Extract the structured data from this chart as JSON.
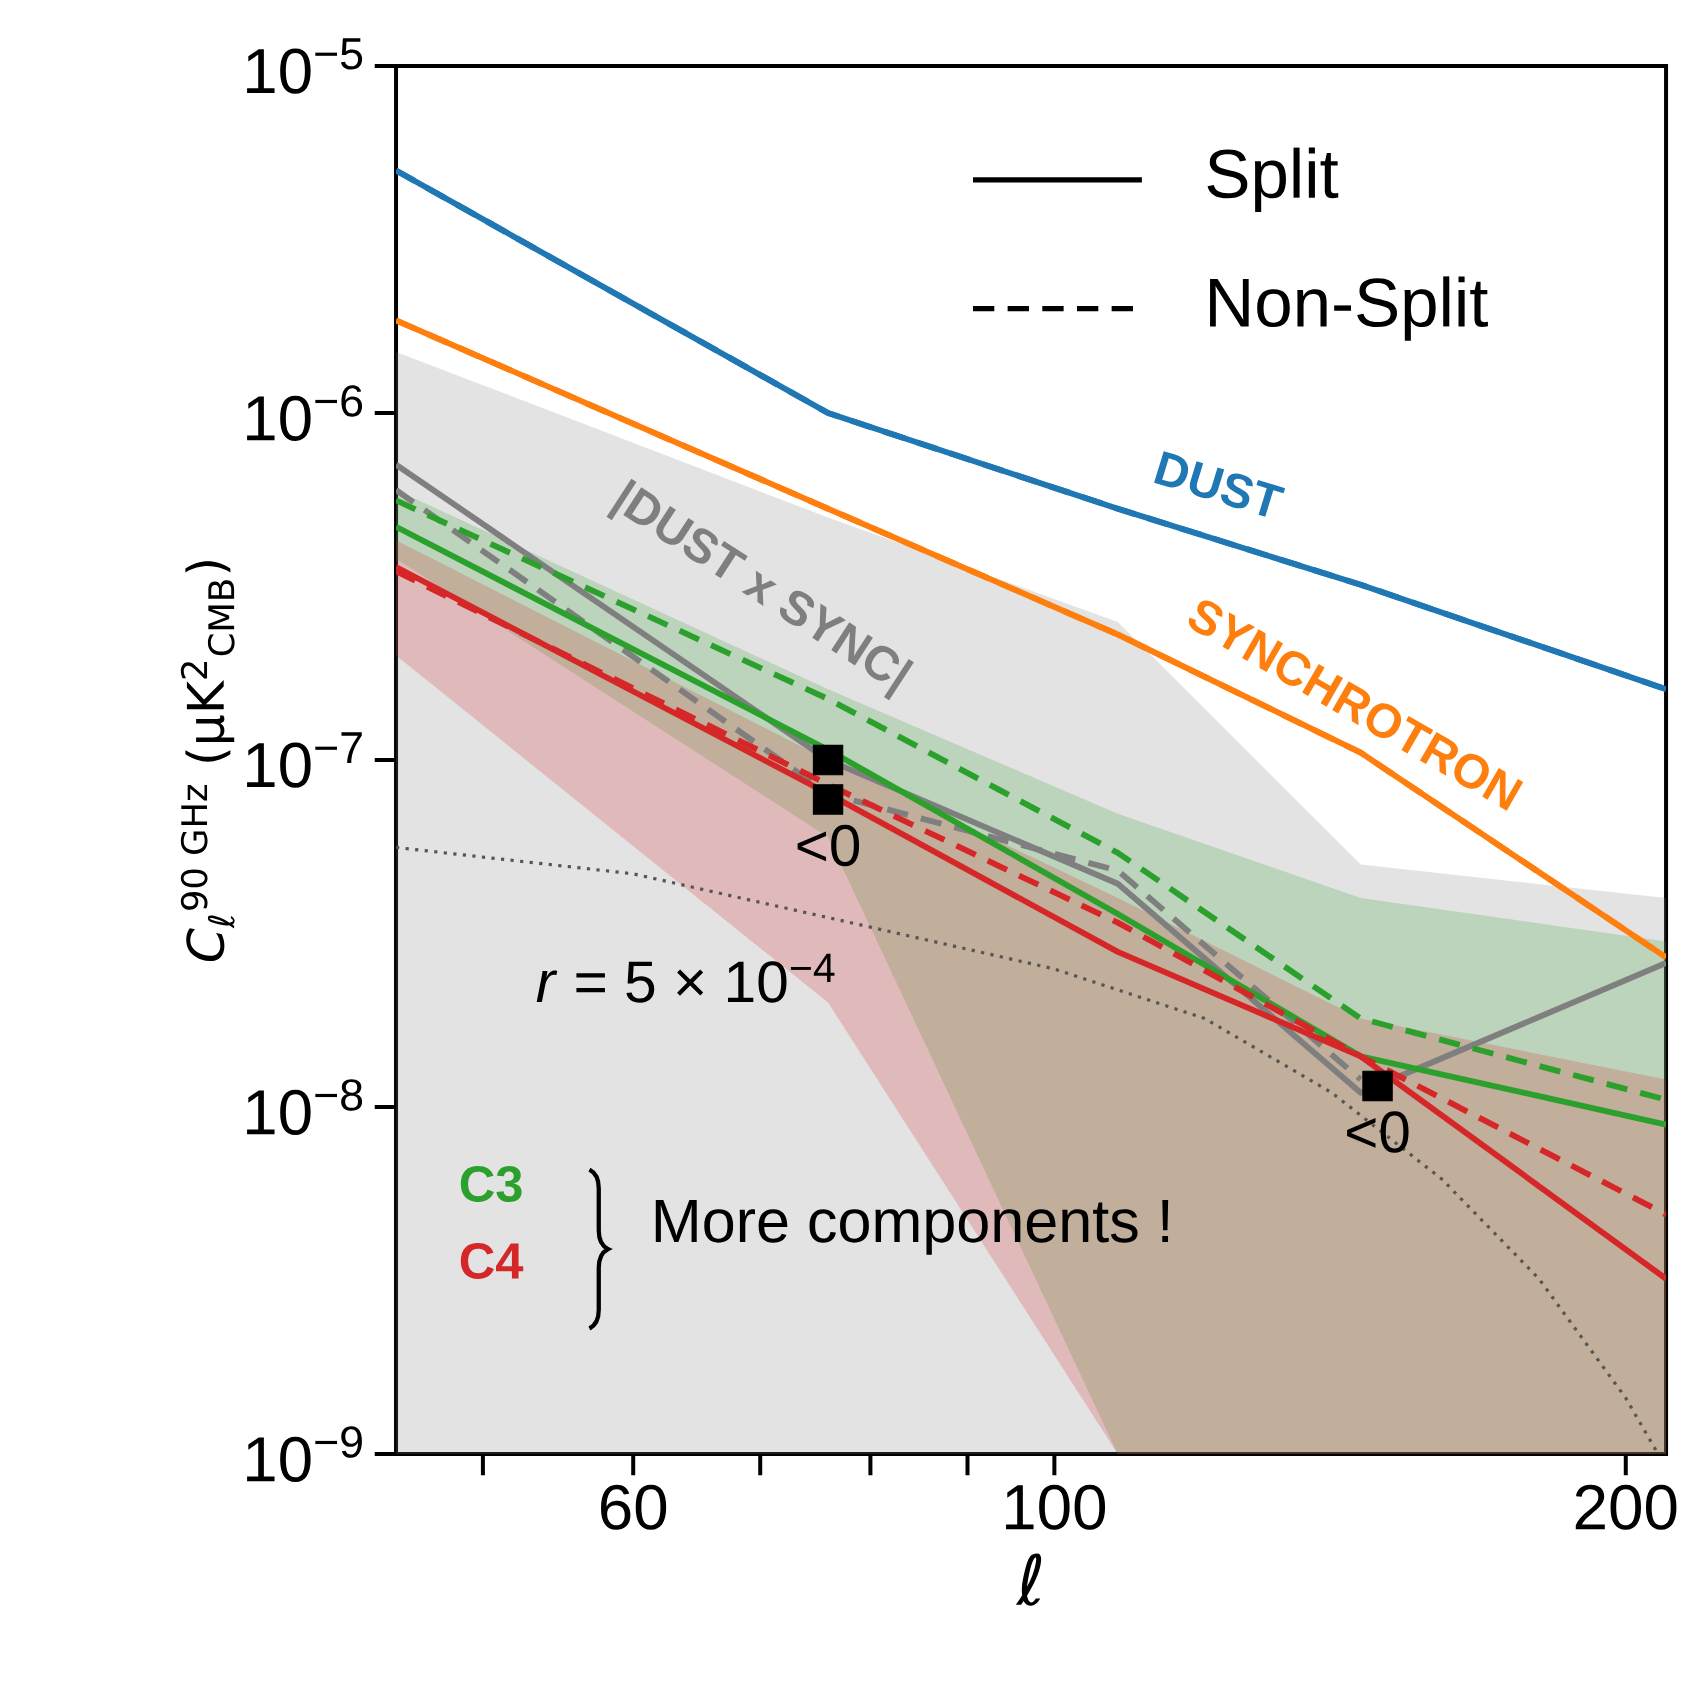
{
  "chart_data": {
    "type": "line",
    "xlabel": "ℓ",
    "ylabel": "*C*$_{ℓ}$$^{90 GHz}$ (μK$^{2}$$_{CMB}$)",
    "log": "xy",
    "xlim": [
      45,
      210
    ],
    "ylim": [
      1e-09,
      1e-05
    ],
    "xticks": [
      {
        "value": 50,
        "label": null
      },
      60,
      {
        "value": 70,
        "label": null
      },
      {
        "value": 80,
        "label": null
      },
      {
        "value": 90,
        "label": null
      },
      100,
      200
    ],
    "yticks": [
      {
        "value": 1e-09,
        "label": "10$^{−9}$"
      },
      {
        "value": 1e-08,
        "label": "10$^{−8}$"
      },
      {
        "value": 1e-07,
        "label": "10$^{−7}$"
      },
      {
        "value": 1e-06,
        "label": "10$^{−6}$"
      },
      {
        "value": 1e-05,
        "label": "10$^{−5}$"
      }
    ],
    "x": [
      45,
      76,
      108,
      145,
      210
    ],
    "series": [
      {
        "name": "DUST",
        "color": "#1f77b4",
        "line_style": "solid",
        "values": [
          5e-06,
          1e-06,
          5.3e-07,
          3.2e-07,
          1.6e-07
        ]
      },
      {
        "color": "#1f77b4",
        "line_style": "dashed",
        "values": [
          5e-06,
          1e-06,
          5.3e-07,
          3.2e-07,
          1.6e-07
        ]
      },
      {
        "name": "SYNCHROTRON",
        "color": "#ff7f0e",
        "line_style": "solid",
        "values": [
          1.85e-06,
          5.3e-07,
          2.3e-07,
          1.05e-07,
          2.7e-08
        ]
      },
      {
        "color": "#ff7f0e",
        "line_style": "dashed",
        "values": [
          1.85e-06,
          5.3e-07,
          2.3e-07,
          1.05e-07,
          2.7e-08
        ]
      },
      {
        "name": "|DUST x SYNC|",
        "color": "#7f7f7f",
        "line_style": "solid",
        "values": [
          7.1e-07,
          1e-07,
          4.4e-08,
          1.1e-08,
          2.6e-08
        ],
        "lower": [
          1e-09,
          1e-09,
          1e-09,
          1e-09,
          1e-09
        ],
        "upper": [
          1.5e-06,
          5e-07,
          2.5e-07,
          5e-08,
          4e-08
        ]
      },
      {
        "color": "#7f7f7f",
        "line_style": "dashed",
        "values": [
          6e-07,
          8e-08,
          4.8e-08,
          1.2e-08,
          null
        ]
      },
      {
        "name": "C3",
        "color": "#2ca02c",
        "line_style": "solid",
        "values": [
          4.7e-07,
          1.07e-07,
          3.6e-08,
          1.4e-08,
          8.9e-09
        ],
        "lower": [
          3.8e-07,
          6e-08,
          1e-09,
          1e-09,
          1e-09
        ],
        "upper": [
          6e-07,
          1.6e-07,
          7e-08,
          4e-08,
          3e-08
        ]
      },
      {
        "color": "#2ca02c",
        "line_style": "dashed",
        "values": [
          5.6e-07,
          1.5e-07,
          5.4e-08,
          1.8e-08,
          1.05e-08
        ]
      },
      {
        "name": "C4",
        "color": "#d62728",
        "line_style": "solid",
        "values": [
          3.6e-07,
          8e-08,
          2.8e-08,
          1.4e-08,
          3.2e-09
        ],
        "lower": [
          2e-07,
          2e-08,
          1e-09,
          1e-09,
          1e-09
        ],
        "upper": [
          4.3e-07,
          1e-07,
          4e-08,
          1.8e-08,
          1.2e-08
        ]
      },
      {
        "color": "#d62728",
        "line_style": "dashed",
        "values": [
          3.5e-07,
          8.5e-08,
          3.4e-08,
          1.4e-08,
          4.9e-09
        ]
      },
      {
        "name": "*r* = 5 × 10$^{−4}$",
        "color": "#555555",
        "line_style": "dotted",
        "x": [
          45,
          60,
          80,
          100,
          120,
          140,
          160,
          180,
          200,
          208
        ],
        "values": [
          5.6e-08,
          4.7e-08,
          3.3e-08,
          2.5e-08,
          1.8e-08,
          1.1e-08,
          6.2e-09,
          3.2e-09,
          1.45e-09,
          1e-09
        ]
      },
      {
        "type": "scatter",
        "marker": "square",
        "color": "#000000",
        "x": [
          76,
          76,
          148
        ],
        "values": [
          1e-07,
          7.7e-08,
          1.15e-08
        ]
      }
    ],
    "annotations": [
      "Split",
      "Non-Split",
      "More components !",
      {
        "text": "<0",
        "x": 76,
        "y": 7.7e-08
      },
      {
        "text": "<0",
        "x": 148,
        "y": 1.15e-08
      }
    ]
  }
}
